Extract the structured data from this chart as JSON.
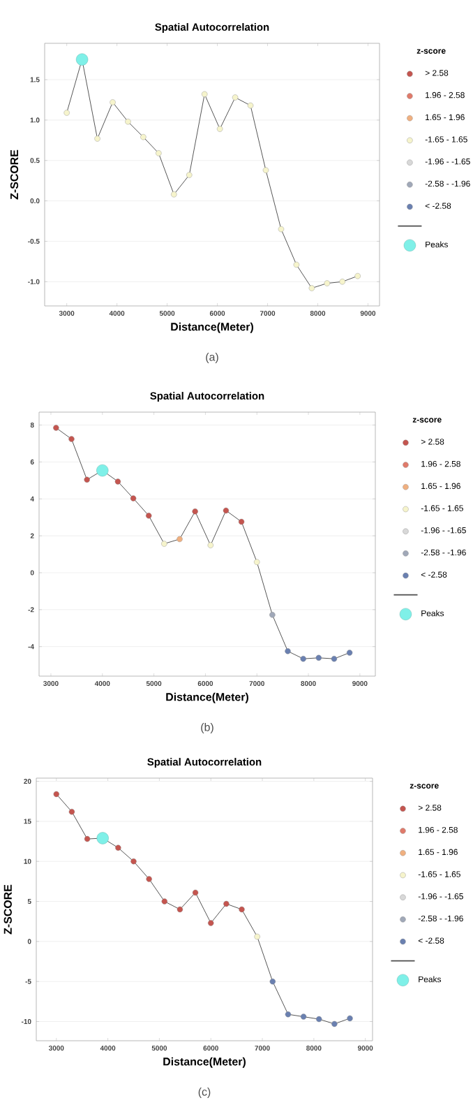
{
  "chart_data": [
    {
      "type": "line",
      "title": "Spatial Autocorrelation",
      "xlabel": "Distance(Meter)",
      "ylabel": "Z-SCORE",
      "legend_title": "z-score",
      "legend": "right",
      "grid": "y",
      "marker": "circle",
      "annotations": [
        "(a)"
      ],
      "xlim": [
        2560,
        9230
      ],
      "ylim": [
        -1.3,
        1.95
      ],
      "xticks": [
        3000,
        4000,
        5000,
        6000,
        7000,
        8000,
        9000
      ],
      "yticks": [
        {
          "value": -1,
          "label": "-1.0"
        },
        -0.5,
        {
          "value": 0,
          "label": "0.0"
        },
        0.5,
        {
          "value": 1,
          "label": "1.0"
        },
        1.5
      ],
      "x": [
        3000,
        3305,
        3610,
        3915,
        4220,
        4525,
        4830,
        5135,
        5440,
        5745,
        6050,
        6355,
        6660,
        6965,
        7270,
        7575,
        7880,
        8185,
        8490,
        8795
      ],
      "series": [
        {
          "type": "scatter",
          "name": "> 2.58",
          "color": "#c4554f",
          "values": [
            null,
            null,
            null,
            null,
            null,
            null,
            null,
            null,
            null,
            null,
            null,
            null,
            null,
            null,
            null,
            null,
            null,
            null,
            null,
            null
          ]
        },
        {
          "type": "scatter",
          "name": "1.96 - 2.58",
          "color": "#e07a6a",
          "values": [
            null,
            null,
            null,
            null,
            null,
            null,
            null,
            null,
            null,
            null,
            null,
            null,
            null,
            null,
            null,
            null,
            null,
            null,
            null,
            null
          ]
        },
        {
          "type": "scatter",
          "name": "1.65 - 1.96",
          "color": "#f0b080",
          "values": [
            null,
            null,
            null,
            null,
            null,
            null,
            null,
            null,
            null,
            null,
            null,
            null,
            null,
            null,
            null,
            null,
            null,
            null,
            null,
            null
          ]
        },
        {
          "type": "scatter",
          "name": "-1.65 - 1.65",
          "color": "#f6f4cc",
          "values": [
            1.09,
            null,
            0.77,
            1.22,
            0.98,
            0.79,
            0.59,
            0.08,
            0.32,
            1.32,
            0.89,
            1.28,
            1.18,
            0.38,
            -0.35,
            -0.79,
            -1.08,
            -1.02,
            -1.0,
            -0.93
          ]
        },
        {
          "type": "scatter",
          "name": "-1.96 - -1.65",
          "color": "#d8d8d8",
          "values": [
            null,
            null,
            null,
            null,
            null,
            null,
            null,
            null,
            null,
            null,
            null,
            null,
            null,
            null,
            null,
            null,
            null,
            null,
            null,
            null
          ]
        },
        {
          "type": "scatter",
          "name": "-2.58 - -1.96",
          "color": "#a0a8b8",
          "values": [
            null,
            null,
            null,
            null,
            null,
            null,
            null,
            null,
            null,
            null,
            null,
            null,
            null,
            null,
            null,
            null,
            null,
            null,
            null,
            null
          ]
        },
        {
          "type": "scatter",
          "name": "< -2.58",
          "color": "#6a80b0",
          "values": [
            null,
            null,
            null,
            null,
            null,
            null,
            null,
            null,
            null,
            null,
            null,
            null,
            null,
            null,
            null,
            null,
            null,
            null,
            null,
            null
          ]
        },
        {
          "color": "#555555",
          "marker": "none",
          "values": [
            1.09,
            1.75,
            0.77,
            1.22,
            0.98,
            0.79,
            0.59,
            0.08,
            0.32,
            1.32,
            0.89,
            1.28,
            1.18,
            0.38,
            -0.35,
            -0.79,
            -1.08,
            -1.02,
            -1.0,
            -0.93
          ]
        },
        {
          "type": "bubble",
          "name": "Peaks",
          "color": "#7ff0e8",
          "x": [
            3305
          ],
          "values": [
            1.75
          ],
          "sizes": [
            1
          ]
        }
      ]
    },
    {
      "type": "line",
      "title": "Spatial Autocorrelation",
      "xlabel": "Distance(Meter)",
      "legend_title": "z-score",
      "legend": "right",
      "grid": "y",
      "marker": "circle",
      "annotations": [
        "(b)"
      ],
      "xlim": [
        2770,
        9300
      ],
      "ylim": [
        -5.6,
        8.7
      ],
      "xticks": [
        3000,
        4000,
        5000,
        6000,
        7000,
        8000,
        9000
      ],
      "yticks": [
        -4,
        -2,
        0,
        2,
        4,
        6,
        8
      ],
      "x": [
        3100,
        3400,
        3700,
        4000,
        4300,
        4600,
        4900,
        5200,
        5500,
        5800,
        6100,
        6400,
        6700,
        7000,
        7300,
        7600,
        7900,
        8200,
        8500,
        8800
      ],
      "series": [
        {
          "type": "scatter",
          "name": "> 2.58",
          "color": "#c4554f",
          "values": [
            7.85,
            7.24,
            5.04,
            null,
            4.94,
            4.03,
            3.09,
            null,
            null,
            3.32,
            null,
            3.37,
            2.76,
            null,
            null,
            null,
            null,
            null,
            null,
            null
          ]
        },
        {
          "type": "scatter",
          "name": "1.96 - 2.58",
          "color": "#e07a6a",
          "values": [
            null,
            null,
            null,
            null,
            null,
            null,
            null,
            null,
            null,
            null,
            null,
            null,
            null,
            null,
            null,
            null,
            null,
            null,
            null,
            null
          ]
        },
        {
          "type": "scatter",
          "name": "1.65 - 1.96",
          "color": "#f0b080",
          "values": [
            null,
            null,
            null,
            null,
            null,
            null,
            null,
            null,
            1.82,
            null,
            null,
            null,
            null,
            null,
            null,
            null,
            null,
            null,
            null,
            null
          ]
        },
        {
          "type": "scatter",
          "name": "-1.65 - 1.65",
          "color": "#f6f4cc",
          "values": [
            null,
            null,
            null,
            null,
            null,
            null,
            null,
            1.57,
            null,
            null,
            1.49,
            null,
            null,
            0.58,
            null,
            null,
            null,
            null,
            null,
            null
          ]
        },
        {
          "type": "scatter",
          "name": "-1.96 - -1.65",
          "color": "#d8d8d8",
          "values": [
            null,
            null,
            null,
            null,
            null,
            null,
            null,
            null,
            null,
            null,
            null,
            null,
            null,
            null,
            null,
            null,
            null,
            null,
            null,
            null
          ]
        },
        {
          "type": "scatter",
          "name": "-2.58 - -1.96",
          "color": "#a0a8b8",
          "values": [
            null,
            null,
            null,
            null,
            null,
            null,
            null,
            null,
            null,
            null,
            null,
            null,
            null,
            null,
            -2.28,
            null,
            null,
            null,
            null,
            null
          ]
        },
        {
          "type": "scatter",
          "name": "< -2.58",
          "color": "#6a80b0",
          "values": [
            null,
            null,
            null,
            null,
            null,
            null,
            null,
            null,
            null,
            null,
            null,
            null,
            null,
            null,
            null,
            -4.25,
            -4.66,
            -4.61,
            -4.66,
            -4.33
          ]
        },
        {
          "color": "#555555",
          "marker": "none",
          "values": [
            7.85,
            7.24,
            5.04,
            5.54,
            4.94,
            4.03,
            3.09,
            1.57,
            1.82,
            3.32,
            1.49,
            3.37,
            2.76,
            0.58,
            -2.28,
            -4.25,
            -4.66,
            -4.61,
            -4.66,
            -4.33
          ]
        },
        {
          "type": "bubble",
          "name": "Peaks",
          "color": "#7ff0e8",
          "x": [
            4000
          ],
          "values": [
            5.54
          ],
          "sizes": [
            1
          ]
        }
      ]
    },
    {
      "type": "line",
      "title": "Spatial Autocorrelation",
      "xlabel": "Distance(Meter)",
      "ylabel": "Z-SCORE",
      "legend_title": "z-score",
      "legend": "right",
      "grid": "y",
      "marker": "circle",
      "annotations": [
        "(c)"
      ],
      "xlim": [
        2610,
        9140
      ],
      "ylim": [
        -12.4,
        20.4
      ],
      "xticks": [
        3000,
        4000,
        5000,
        6000,
        7000,
        8000,
        9000
      ],
      "yticks": [
        -10,
        -5,
        0,
        5,
        10,
        15,
        20
      ],
      "x": [
        3000,
        3300,
        3600,
        3900,
        4200,
        4500,
        4800,
        5100,
        5400,
        5700,
        6000,
        6300,
        6600,
        6900,
        7200,
        7500,
        7800,
        8100,
        8400,
        8700
      ],
      "series": [
        {
          "type": "scatter",
          "name": "> 2.58",
          "color": "#c4554f",
          "values": [
            18.4,
            16.2,
            12.8,
            null,
            11.7,
            10.0,
            7.8,
            5.0,
            4.0,
            6.1,
            2.3,
            4.7,
            4.0,
            null,
            null,
            null,
            null,
            null,
            null,
            null
          ]
        },
        {
          "type": "scatter",
          "name": "1.96 - 2.58",
          "color": "#e07a6a",
          "values": [
            null,
            null,
            null,
            null,
            null,
            null,
            null,
            null,
            null,
            null,
            null,
            null,
            null,
            null,
            null,
            null,
            null,
            null,
            null,
            null
          ]
        },
        {
          "type": "scatter",
          "name": "1.65 - 1.96",
          "color": "#f0b080",
          "values": [
            null,
            null,
            null,
            null,
            null,
            null,
            null,
            null,
            null,
            null,
            null,
            null,
            null,
            null,
            null,
            null,
            null,
            null,
            null,
            null
          ]
        },
        {
          "type": "scatter",
          "name": "-1.65 - 1.65",
          "color": "#f6f4cc",
          "values": [
            null,
            null,
            null,
            null,
            null,
            null,
            null,
            null,
            null,
            null,
            null,
            null,
            null,
            0.6,
            null,
            null,
            null,
            null,
            null,
            null
          ]
        },
        {
          "type": "scatter",
          "name": "-1.96 - -1.65",
          "color": "#d8d8d8",
          "values": [
            null,
            null,
            null,
            null,
            null,
            null,
            null,
            null,
            null,
            null,
            null,
            null,
            null,
            null,
            null,
            null,
            null,
            null,
            null,
            null
          ]
        },
        {
          "type": "scatter",
          "name": "-2.58 - -1.96",
          "color": "#a0a8b8",
          "values": [
            null,
            null,
            null,
            null,
            null,
            null,
            null,
            null,
            null,
            null,
            null,
            null,
            null,
            null,
            null,
            null,
            null,
            null,
            null,
            null
          ]
        },
        {
          "type": "scatter",
          "name": "< -2.58",
          "color": "#6a80b0",
          "values": [
            null,
            null,
            null,
            null,
            null,
            null,
            null,
            null,
            null,
            null,
            null,
            null,
            null,
            null,
            -5.0,
            -9.1,
            -9.4,
            -9.7,
            -10.3,
            -9.6
          ]
        },
        {
          "color": "#555555",
          "marker": "none",
          "values": [
            18.4,
            16.2,
            12.8,
            12.9,
            11.7,
            10.0,
            7.8,
            5.0,
            4.0,
            6.1,
            2.3,
            4.7,
            4.0,
            0.6,
            -5.0,
            -9.1,
            -9.4,
            -9.7,
            -10.3,
            -9.6
          ]
        },
        {
          "type": "bubble",
          "name": "Peaks",
          "color": "#7ff0e8",
          "x": [
            3900
          ],
          "values": [
            12.9
          ],
          "sizes": [
            1
          ]
        }
      ]
    }
  ]
}
